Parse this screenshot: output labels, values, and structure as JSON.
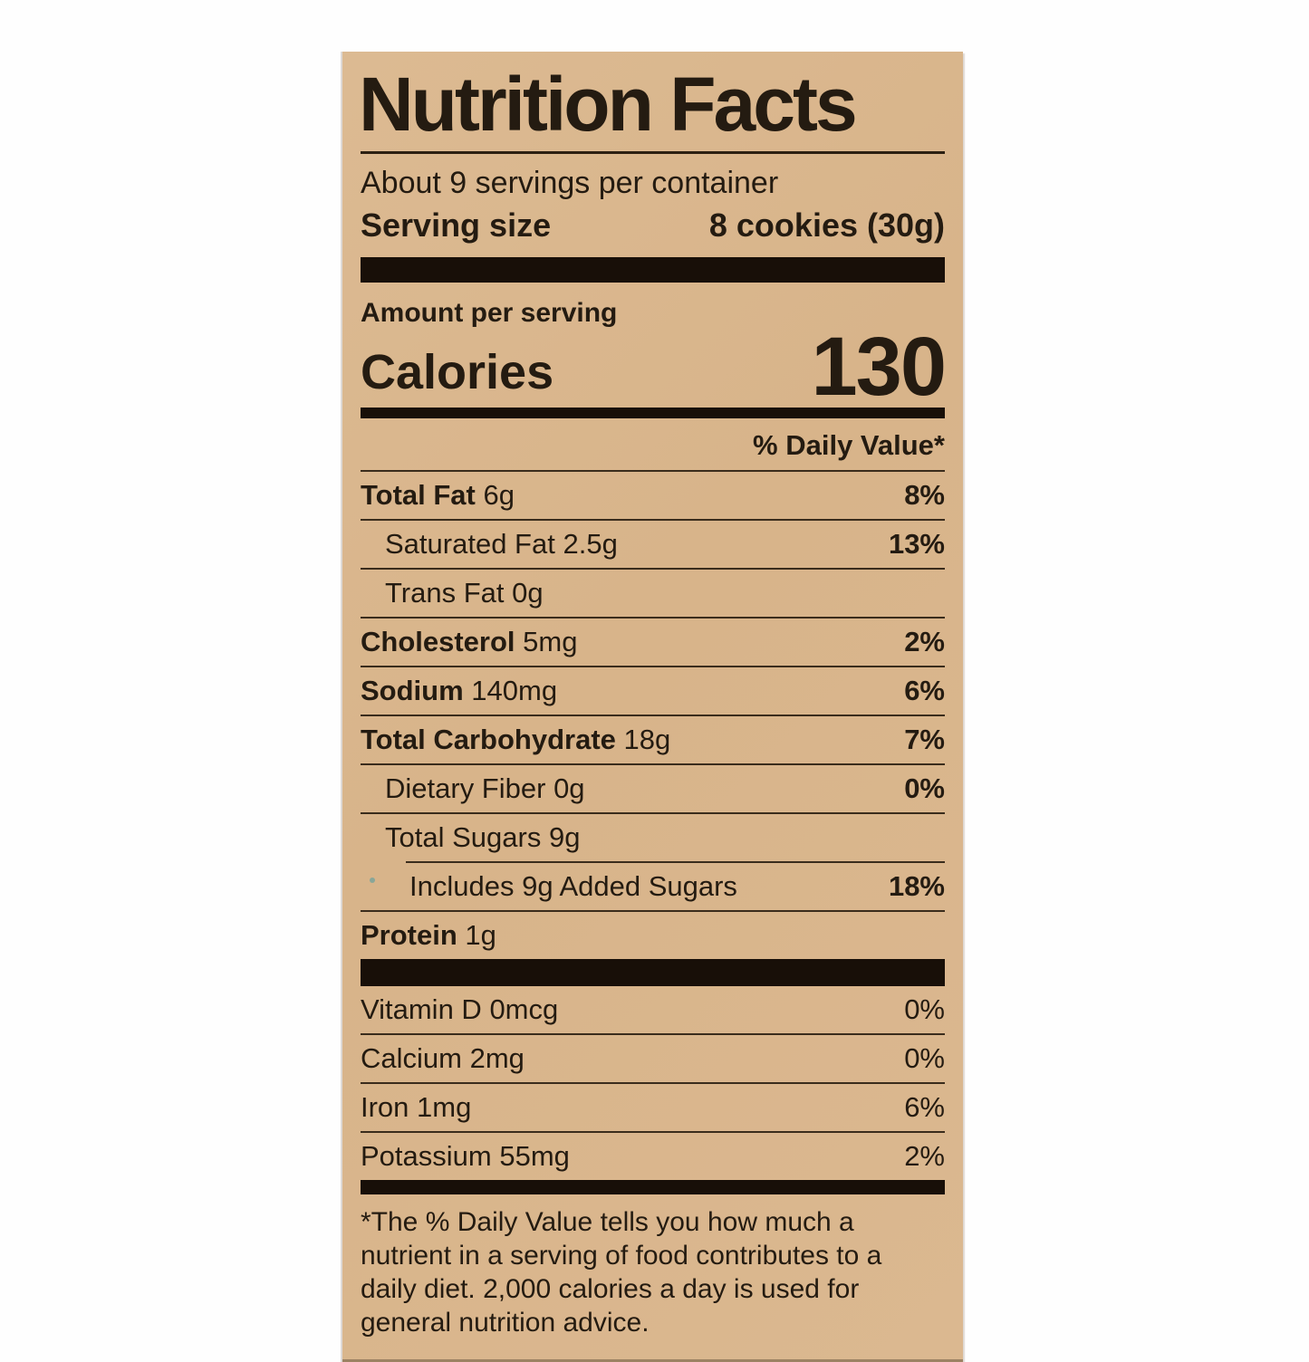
{
  "label": {
    "title": "Nutrition Facts",
    "servings_per_container": "About 9 servings per container",
    "serving_size": {
      "label": "Serving size",
      "value": "8 cookies (30g)"
    },
    "amount_per_serving": "Amount per serving",
    "calories": {
      "label": "Calories",
      "value": "130"
    },
    "daily_value_header": "% Daily Value*",
    "nutrients": [
      {
        "name": "Total Fat",
        "amount": "6g",
        "dv": "8%"
      },
      {
        "name": "Saturated Fat",
        "amount": "2.5g",
        "dv": "13%"
      },
      {
        "name": "Trans Fat",
        "amount": "0g",
        "dv": ""
      },
      {
        "name": "Cholesterol",
        "amount": "5mg",
        "dv": "2%"
      },
      {
        "name": "Sodium",
        "amount": "140mg",
        "dv": "6%"
      },
      {
        "name": "Total Carbohydrate",
        "amount": "18g",
        "dv": "7%"
      },
      {
        "name": "Dietary Fiber",
        "amount": "0g",
        "dv": "0%"
      },
      {
        "name": "Total Sugars",
        "amount": "9g",
        "dv": ""
      },
      {
        "name": "Includes 9g Added Sugars",
        "amount": "",
        "dv": "18%"
      },
      {
        "name": "Protein",
        "amount": "1g",
        "dv": ""
      }
    ],
    "micronutrients": [
      {
        "name": "Vitamin D",
        "amount": "0mcg",
        "dv": "0%"
      },
      {
        "name": "Calcium",
        "amount": "2mg",
        "dv": "0%"
      },
      {
        "name": "Iron",
        "amount": "1mg",
        "dv": "6%"
      },
      {
        "name": "Potassium",
        "amount": "55mg",
        "dv": "2%"
      }
    ],
    "footnote": "*The % Daily Value tells you how much a nutrient in a serving of food contributes to a daily diet. 2,000 calories a day is used for general nutrition advice.",
    "colors": {
      "label_bg": "#d9b68c",
      "ink": "#241b11",
      "bar": "#180f08",
      "page_bg": "#fefefe"
    }
  }
}
